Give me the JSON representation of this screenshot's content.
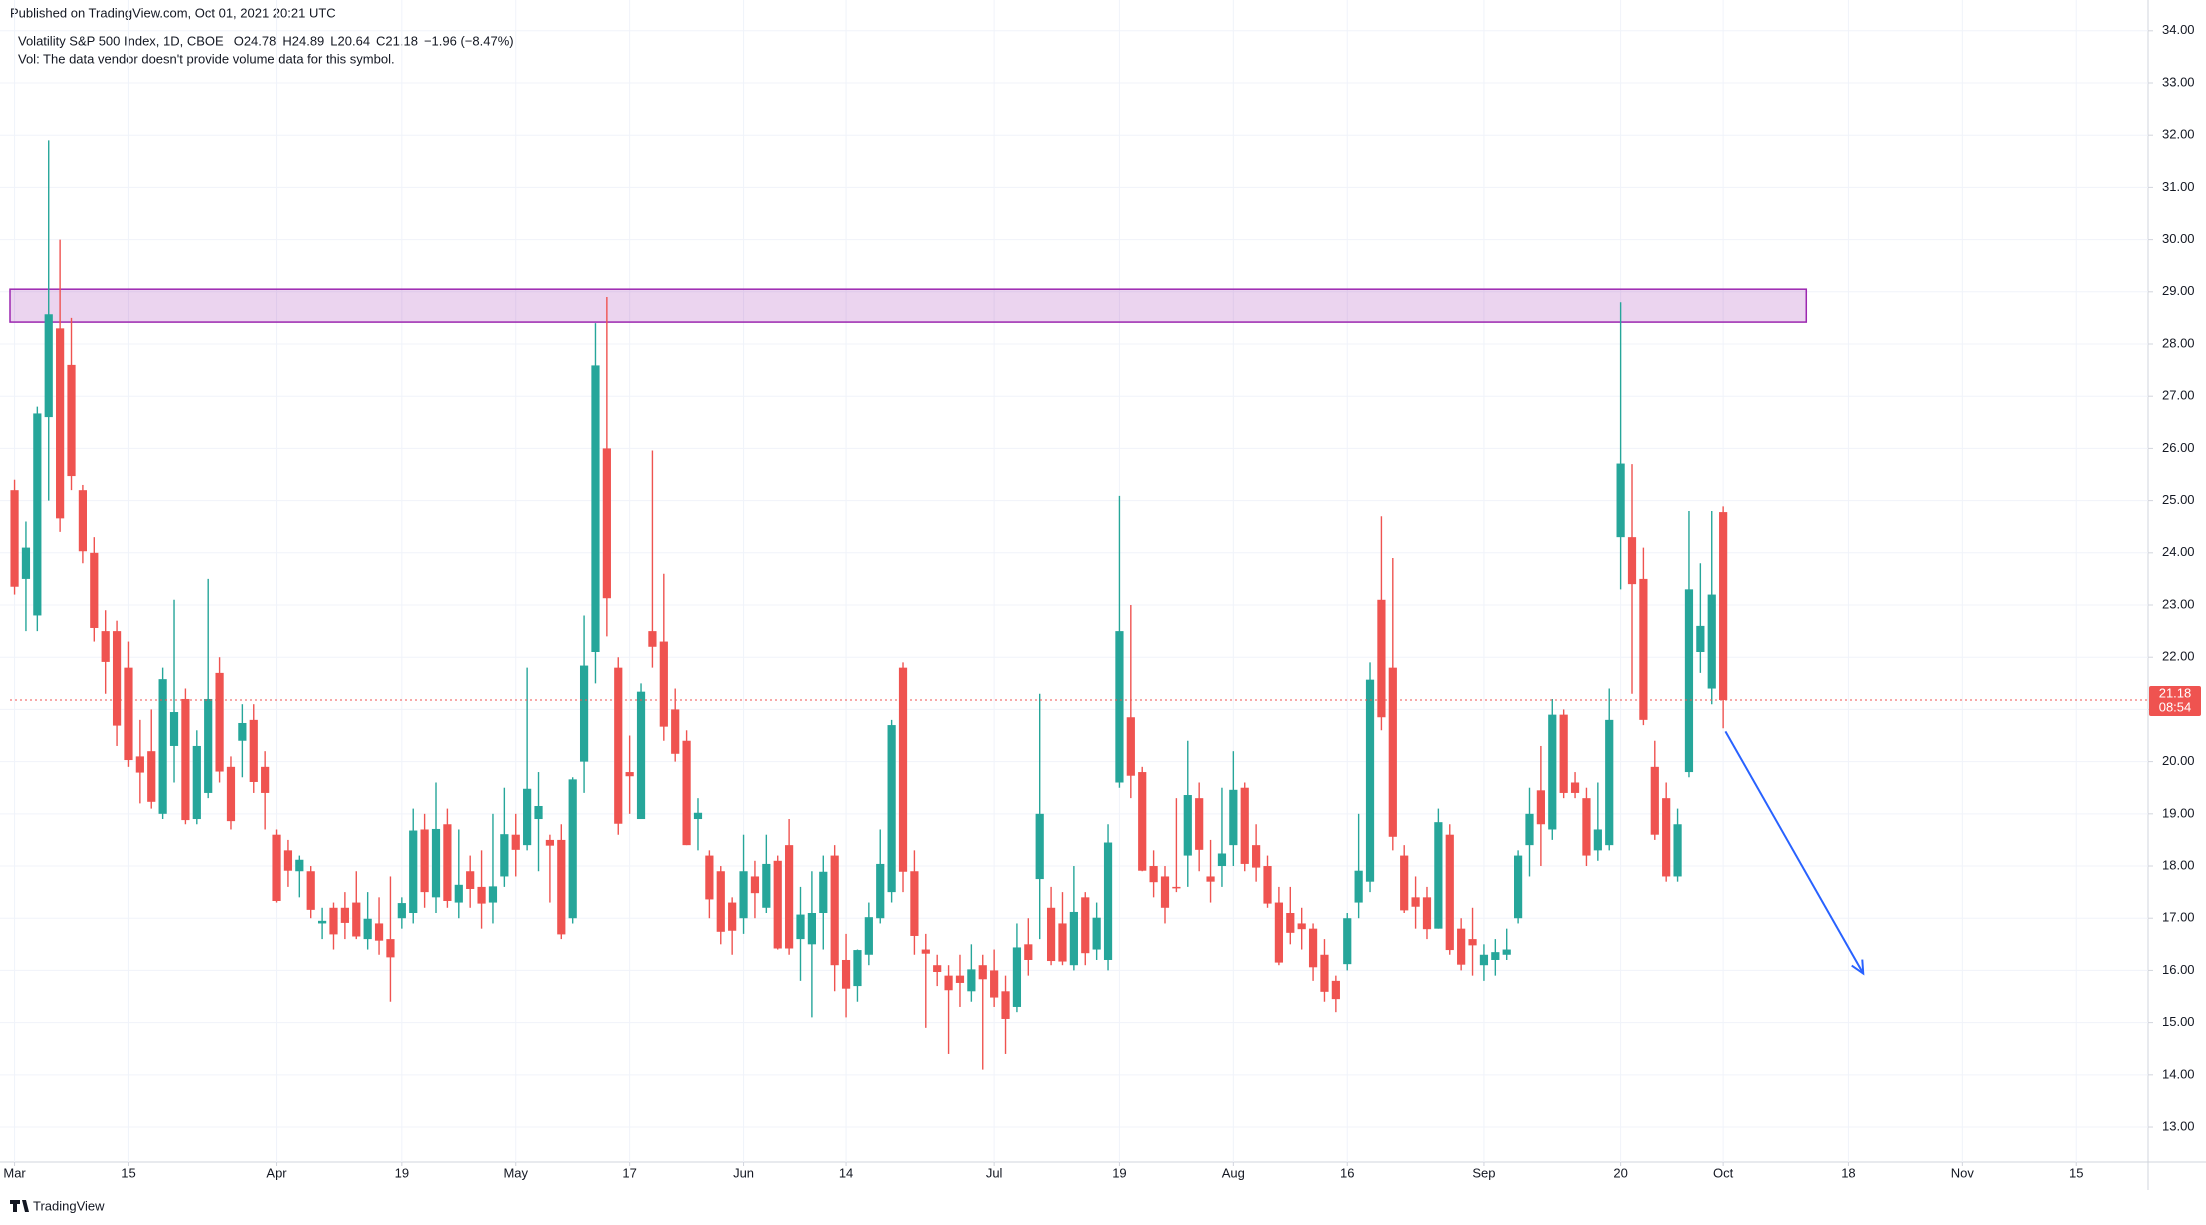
{
  "header": {
    "published": "Published on TradingView.com, Oct 01, 2021 20:21 UTC",
    "legend_symbol": "Volatility S&P 500 Index, 1D, CBOE",
    "legend_values": [
      "O24.78",
      "H24.89",
      "L20.64",
      "C21.18",
      "−1.96 (−8.47%)"
    ],
    "volume_note": "Vol: The data vendor doesn't provide volume data for this symbol."
  },
  "footer": {
    "brand": "TradingView"
  },
  "chart_data": {
    "type": "candlestick",
    "up_color": "#26a69a",
    "down_color": "#ef5350",
    "grid": true,
    "xlim": [
      -0.4,
      187.3
    ],
    "ylim": [
      12.33,
      34.59
    ],
    "xticks": [
      {
        "value": 0,
        "label": "Mar"
      },
      {
        "value": 10,
        "label": "15"
      },
      {
        "value": 23,
        "label": "Apr"
      },
      {
        "value": 34,
        "label": "19"
      },
      {
        "value": 44,
        "label": "May"
      },
      {
        "value": 54,
        "label": "17"
      },
      {
        "value": 64,
        "label": "Jun"
      },
      {
        "value": 73,
        "label": "14"
      },
      {
        "value": 86,
        "label": "Jul"
      },
      {
        "value": 97,
        "label": "19"
      },
      {
        "value": 107,
        "label": "Aug"
      },
      {
        "value": 117,
        "label": "16"
      },
      {
        "value": 129,
        "label": "Sep"
      },
      {
        "value": 141,
        "label": "20"
      },
      {
        "value": 150,
        "label": "Oct"
      },
      {
        "value": 161,
        "label": "18"
      },
      {
        "value": 171,
        "label": "Nov"
      },
      {
        "value": 181,
        "label": "15"
      }
    ],
    "yticks": [
      {
        "value": 13,
        "label": "13.00"
      },
      {
        "value": 14,
        "label": "14.00"
      },
      {
        "value": 15,
        "label": "15.00"
      },
      {
        "value": 16,
        "label": "16.00"
      },
      {
        "value": 17,
        "label": "17.00"
      },
      {
        "value": 18,
        "label": "18.00"
      },
      {
        "value": 19,
        "label": "19.00"
      },
      {
        "value": 20,
        "label": "20.00"
      },
      {
        "value": 21,
        "label": "21.00"
      },
      {
        "value": 22,
        "label": "22.00"
      },
      {
        "value": 23,
        "label": "23.00"
      },
      {
        "value": 24,
        "label": "24.00"
      },
      {
        "value": 25,
        "label": "25.00"
      },
      {
        "value": 26,
        "label": "26.00"
      },
      {
        "value": 27,
        "label": "27.00"
      },
      {
        "value": 28,
        "label": "28.00"
      },
      {
        "value": 29,
        "label": "29.00"
      },
      {
        "value": 30,
        "label": "30.00"
      },
      {
        "value": 31,
        "label": "31.00"
      },
      {
        "value": 32,
        "label": "32.00"
      },
      {
        "value": 33,
        "label": "33.00"
      },
      {
        "value": 34,
        "label": "34.00"
      }
    ],
    "last_price": {
      "value": 21.18,
      "countdown": "08:54",
      "color": "#ef5350"
    },
    "zone": {
      "xlim": [
        -0.4,
        157.3
      ],
      "ylim": [
        28.42,
        29.05
      ],
      "color": "#9c27b0"
    },
    "arrow": {
      "from": [
        150.2,
        20.58
      ],
      "to": [
        162.3,
        15.94
      ],
      "color": "#2962ff"
    },
    "ohlc": [
      [
        25.2,
        25.4,
        23.2,
        23.35
      ],
      [
        23.5,
        24.6,
        22.5,
        24.1
      ],
      [
        22.8,
        26.8,
        22.5,
        26.67
      ],
      [
        26.6,
        31.9,
        25.0,
        28.57
      ],
      [
        28.3,
        30.0,
        24.4,
        24.66
      ],
      [
        27.6,
        28.5,
        25.2,
        25.47
      ],
      [
        25.2,
        25.3,
        23.8,
        24.03
      ],
      [
        24.0,
        24.3,
        22.3,
        22.56
      ],
      [
        22.5,
        22.9,
        21.3,
        21.91
      ],
      [
        22.5,
        22.7,
        20.3,
        20.69
      ],
      [
        21.8,
        22.3,
        19.9,
        20.03
      ],
      [
        20.1,
        20.8,
        19.2,
        19.79
      ],
      [
        20.2,
        21.0,
        19.1,
        19.23
      ],
      [
        19.0,
        21.8,
        18.9,
        21.58
      ],
      [
        20.3,
        23.1,
        19.6,
        20.95
      ],
      [
        21.2,
        21.4,
        18.8,
        18.88
      ],
      [
        18.9,
        20.6,
        18.8,
        20.3
      ],
      [
        19.4,
        23.5,
        19.3,
        21.2
      ],
      [
        21.7,
        22.0,
        19.6,
        19.81
      ],
      [
        19.9,
        20.1,
        18.7,
        18.86
      ],
      [
        20.4,
        21.1,
        19.7,
        20.74
      ],
      [
        20.8,
        21.1,
        19.4,
        19.61
      ],
      [
        19.9,
        20.2,
        18.7,
        19.4
      ],
      [
        18.6,
        18.7,
        17.3,
        17.33
      ],
      [
        18.3,
        18.5,
        17.6,
        17.91
      ],
      [
        17.9,
        18.2,
        17.4,
        18.12
      ],
      [
        17.9,
        18.0,
        17.0,
        17.16
      ],
      [
        16.9,
        17.2,
        16.6,
        16.95
      ],
      [
        17.2,
        17.3,
        16.4,
        16.69
      ],
      [
        17.2,
        17.5,
        16.6,
        16.91
      ],
      [
        17.3,
        17.9,
        16.6,
        16.65
      ],
      [
        16.6,
        17.5,
        16.4,
        16.99
      ],
      [
        16.9,
        17.4,
        16.3,
        16.57
      ],
      [
        16.6,
        17.8,
        15.4,
        16.25
      ],
      [
        17.0,
        17.4,
        16.8,
        17.29
      ],
      [
        17.1,
        19.1,
        16.9,
        18.68
      ],
      [
        18.7,
        19.0,
        17.2,
        17.5
      ],
      [
        17.4,
        19.6,
        17.1,
        18.71
      ],
      [
        18.8,
        19.1,
        17.2,
        17.33
      ],
      [
        17.3,
        18.7,
        17.0,
        17.64
      ],
      [
        17.9,
        18.2,
        17.2,
        17.56
      ],
      [
        17.6,
        18.3,
        16.8,
        17.28
      ],
      [
        17.3,
        19.0,
        16.9,
        17.61
      ],
      [
        17.8,
        19.5,
        17.6,
        18.61
      ],
      [
        18.6,
        19.0,
        17.8,
        18.31
      ],
      [
        18.4,
        21.8,
        18.3,
        19.48
      ],
      [
        18.9,
        19.8,
        17.9,
        19.15
      ],
      [
        18.5,
        18.6,
        17.3,
        18.39
      ],
      [
        18.5,
        18.8,
        16.6,
        16.69
      ],
      [
        17.0,
        19.7,
        16.9,
        19.66
      ],
      [
        20.0,
        22.8,
        19.4,
        21.84
      ],
      [
        22.1,
        28.4,
        21.5,
        27.59
      ],
      [
        26.0,
        28.9,
        22.4,
        23.13
      ],
      [
        21.8,
        22.0,
        18.6,
        18.81
      ],
      [
        19.8,
        20.5,
        19.0,
        19.72
      ],
      [
        18.9,
        21.5,
        18.9,
        21.34
      ],
      [
        22.5,
        25.96,
        21.8,
        22.2
      ],
      [
        22.3,
        23.6,
        20.4,
        20.67
      ],
      [
        21.0,
        21.4,
        20.0,
        20.15
      ],
      [
        20.4,
        20.6,
        18.4,
        18.4
      ],
      [
        18.9,
        19.3,
        18.3,
        19.02
      ],
      [
        18.2,
        18.3,
        17.0,
        17.36
      ],
      [
        17.9,
        18.0,
        16.5,
        16.74
      ],
      [
        17.3,
        17.4,
        16.3,
        16.76
      ],
      [
        17.0,
        18.6,
        16.7,
        17.9
      ],
      [
        17.8,
        18.1,
        17.0,
        17.48
      ],
      [
        17.2,
        18.6,
        17.1,
        18.04
      ],
      [
        18.1,
        18.2,
        16.4,
        16.42
      ],
      [
        18.4,
        18.9,
        16.3,
        16.42
      ],
      [
        16.6,
        17.6,
        15.8,
        17.07
      ],
      [
        16.5,
        17.9,
        15.1,
        17.1
      ],
      [
        17.1,
        18.2,
        16.4,
        17.89
      ],
      [
        18.2,
        18.4,
        15.6,
        16.1
      ],
      [
        16.2,
        16.7,
        15.1,
        15.65
      ],
      [
        15.7,
        16.4,
        15.4,
        16.39
      ],
      [
        16.3,
        17.3,
        16.1,
        17.02
      ],
      [
        17.0,
        18.7,
        16.9,
        18.04
      ],
      [
        17.5,
        20.8,
        17.3,
        20.7
      ],
      [
        21.8,
        21.9,
        17.5,
        17.89
      ],
      [
        17.9,
        18.3,
        16.3,
        16.66
      ],
      [
        16.4,
        16.7,
        14.9,
        16.32
      ],
      [
        16.1,
        16.3,
        15.7,
        15.97
      ],
      [
        15.9,
        16.1,
        14.4,
        15.62
      ],
      [
        15.9,
        16.3,
        15.3,
        15.76
      ],
      [
        15.6,
        16.5,
        15.4,
        16.02
      ],
      [
        16.1,
        16.3,
        14.1,
        15.83
      ],
      [
        16.0,
        16.4,
        15.3,
        15.48
      ],
      [
        15.6,
        15.9,
        14.4,
        15.07
      ],
      [
        15.3,
        16.9,
        15.2,
        16.44
      ],
      [
        16.5,
        17.0,
        15.9,
        16.2
      ],
      [
        17.75,
        21.3,
        16.6,
        19.0
      ],
      [
        17.2,
        17.6,
        16.1,
        16.18
      ],
      [
        16.9,
        17.5,
        16.1,
        16.17
      ],
      [
        16.1,
        18.0,
        16.0,
        17.12
      ],
      [
        17.4,
        17.5,
        16.1,
        16.33
      ],
      [
        16.4,
        17.3,
        16.2,
        17.01
      ],
      [
        16.2,
        18.8,
        16.0,
        18.45
      ],
      [
        19.6,
        25.09,
        19.5,
        22.5
      ],
      [
        20.85,
        23.0,
        19.3,
        19.73
      ],
      [
        19.8,
        19.9,
        17.9,
        17.91
      ],
      [
        18.0,
        18.3,
        17.4,
        17.69
      ],
      [
        17.8,
        18.0,
        16.9,
        17.2
      ],
      [
        17.6,
        19.3,
        17.5,
        17.58
      ],
      [
        18.2,
        20.4,
        17.6,
        19.36
      ],
      [
        19.3,
        19.6,
        17.9,
        18.31
      ],
      [
        17.8,
        18.5,
        17.3,
        17.7
      ],
      [
        18.0,
        19.5,
        17.6,
        18.24
      ],
      [
        18.4,
        20.2,
        18.0,
        19.46
      ],
      [
        19.5,
        19.6,
        17.9,
        18.04
      ],
      [
        18.4,
        18.8,
        17.7,
        17.97
      ],
      [
        18.0,
        18.2,
        17.2,
        17.28
      ],
      [
        17.3,
        17.6,
        16.1,
        16.15
      ],
      [
        17.1,
        17.6,
        16.5,
        16.72
      ],
      [
        16.9,
        17.2,
        16.4,
        16.79
      ],
      [
        16.8,
        16.9,
        15.8,
        16.06
      ],
      [
        16.3,
        16.6,
        15.4,
        15.59
      ],
      [
        15.8,
        15.9,
        15.2,
        15.45
      ],
      [
        16.12,
        17.1,
        16.0,
        17.0
      ],
      [
        17.3,
        19.0,
        17.0,
        17.91
      ],
      [
        17.7,
        21.9,
        17.5,
        21.57
      ],
      [
        23.1,
        24.7,
        20.6,
        20.85
      ],
      [
        21.8,
        23.9,
        18.3,
        18.56
      ],
      [
        18.2,
        18.4,
        17.1,
        17.15
      ],
      [
        17.4,
        17.8,
        16.8,
        17.22
      ],
      [
        17.4,
        17.6,
        16.6,
        16.79
      ],
      [
        16.8,
        19.1,
        16.8,
        18.84
      ],
      [
        18.6,
        18.8,
        16.3,
        16.39
      ],
      [
        16.8,
        17.0,
        16.0,
        16.11
      ],
      [
        16.6,
        17.2,
        15.9,
        16.48
      ],
      [
        16.1,
        16.5,
        15.8,
        16.3
      ],
      [
        16.2,
        16.6,
        15.9,
        16.35
      ],
      [
        16.3,
        16.8,
        16.2,
        16.4
      ],
      [
        17.0,
        18.3,
        16.9,
        18.2
      ],
      [
        18.4,
        19.5,
        17.8,
        19.0
      ],
      [
        19.45,
        20.3,
        18.0,
        18.8
      ],
      [
        18.7,
        21.2,
        18.5,
        20.9
      ],
      [
        20.9,
        21.0,
        19.3,
        19.4
      ],
      [
        19.6,
        19.8,
        19.3,
        19.4
      ],
      [
        19.3,
        19.5,
        18.0,
        18.2
      ],
      [
        18.3,
        19.6,
        18.1,
        18.7
      ],
      [
        18.4,
        21.4,
        18.3,
        20.8
      ],
      [
        24.3,
        28.8,
        23.3,
        25.71
      ],
      [
        24.3,
        25.7,
        21.3,
        23.4
      ],
      [
        23.5,
        24.1,
        20.7,
        20.8
      ],
      [
        19.9,
        20.4,
        18.5,
        18.6
      ],
      [
        19.3,
        19.6,
        17.7,
        17.8
      ],
      [
        17.8,
        19.1,
        17.7,
        18.8
      ],
      [
        19.8,
        24.8,
        19.7,
        23.3
      ],
      [
        22.1,
        23.8,
        21.7,
        22.6
      ],
      [
        21.4,
        24.8,
        21.1,
        23.2
      ],
      [
        24.78,
        24.89,
        20.64,
        21.18
      ]
    ]
  }
}
